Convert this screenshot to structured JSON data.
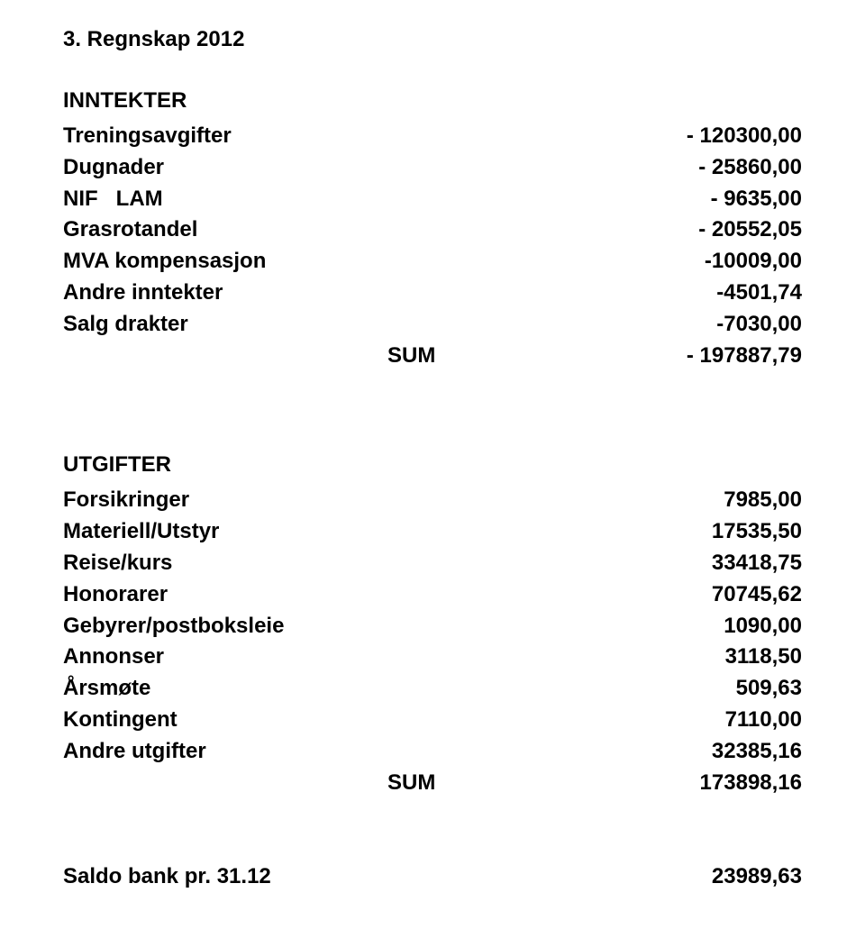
{
  "title": "3. Regnskap 2012",
  "inntekter": {
    "header": "INNTEKTER",
    "rows": [
      {
        "label": "Treningsavgifter",
        "value": "- 120300,00"
      },
      {
        "label": "Dugnader",
        "value": "- 25860,00"
      },
      {
        "label": "NIF   LAM",
        "value": "- 9635,00"
      },
      {
        "label": "Grasrotandel",
        "value": "- 20552,05"
      },
      {
        "label": "MVA kompensasjon",
        "value": "-10009,00"
      },
      {
        "label": "Andre inntekter",
        "value": "-4501,74"
      },
      {
        "label": "Salg drakter",
        "value": "-7030,00"
      }
    ],
    "sum_label": "SUM",
    "sum_value": "- 197887,79"
  },
  "utgifter": {
    "header": "UTGIFTER",
    "rows": [
      {
        "label": "Forsikringer",
        "value": "7985,00"
      },
      {
        "label": "Materiell/Utstyr",
        "value": "17535,50"
      },
      {
        "label": "Reise/kurs",
        "value": "33418,75"
      },
      {
        "label": "Honorarer",
        "value": "70745,62"
      },
      {
        "label": "Gebyrer/postboksleie",
        "value": "1090,00"
      },
      {
        "label": "Annonser",
        "value": "3118,50"
      },
      {
        "label": "Årsmøte",
        "value": "509,63"
      },
      {
        "label": "Kontingent",
        "value": "7110,00"
      },
      {
        "label": "Andre utgifter",
        "value": "32385,16"
      }
    ],
    "sum_label": "SUM",
    "sum_value": "173898,16"
  },
  "saldo": {
    "label": "Saldo bank pr. 31.12",
    "value": "23989,63"
  }
}
